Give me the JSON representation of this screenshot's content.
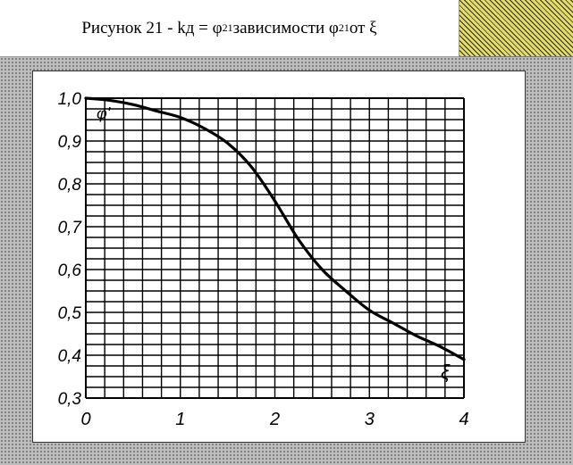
{
  "header": {
    "title_prefix": "Рисунок 21 - kд = φ",
    "sub1": "21",
    "title_middle": " зависимости φ",
    "sub2": "21",
    "title_suffix": " от ξ"
  },
  "chart_data": {
    "type": "line",
    "x": [
      0,
      0.25,
      0.5,
      0.75,
      1.0,
      1.25,
      1.5,
      1.75,
      2.0,
      2.25,
      2.5,
      2.75,
      3.0,
      3.25,
      3.5,
      3.75,
      4.0
    ],
    "series": [
      {
        "values": [
          1.0,
          0.995,
          0.985,
          0.97,
          0.955,
          0.93,
          0.895,
          0.84,
          0.76,
          0.67,
          0.6,
          0.55,
          0.505,
          0.475,
          0.445,
          0.42,
          0.39
        ]
      }
    ],
    "xlim": [
      0,
      4
    ],
    "ylim": [
      0.3,
      1.0
    ],
    "xticks": [
      "0",
      "1",
      "2",
      "3",
      "4"
    ],
    "yticks": [
      "1,0",
      "0,9",
      "0,8",
      "0,7",
      "0,6",
      "0,5",
      "0,4",
      "0,3"
    ],
    "ylabel": "φ'",
    "xlabel": "ξ",
    "grid": true,
    "colors": {
      "line": "#000000",
      "grid": "#000000"
    }
  }
}
